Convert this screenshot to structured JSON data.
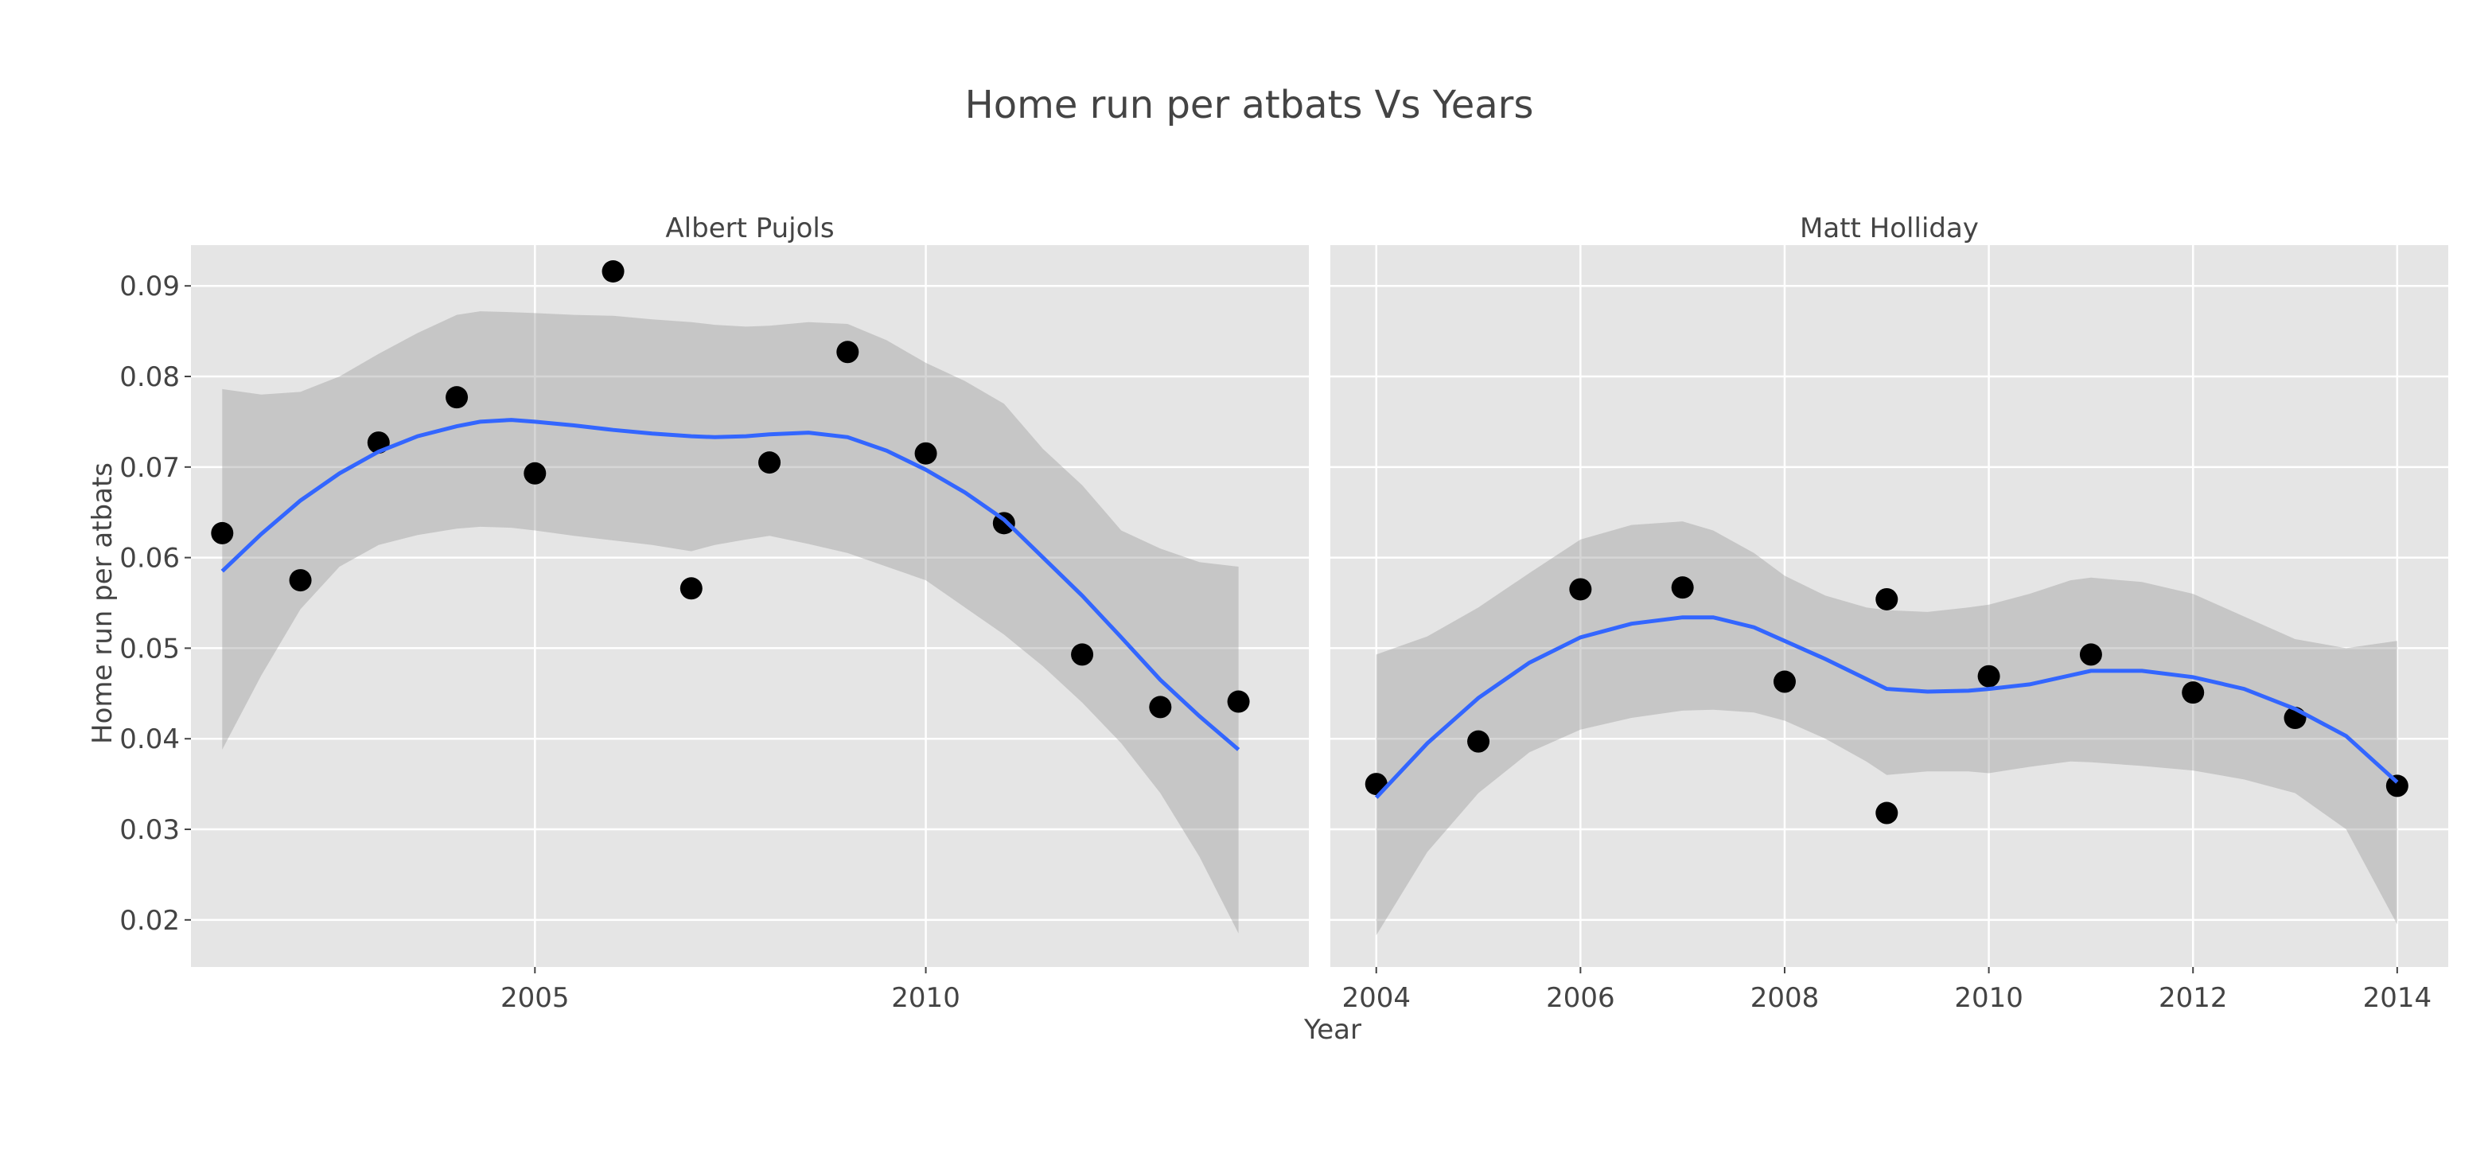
{
  "chart_data": {
    "type": "scatter",
    "title": "Home run per atbats Vs Years",
    "xlabel": "Year",
    "ylabel": "Home run per atbats",
    "y_ticks": [
      "0.02",
      "0.03",
      "0.04",
      "0.05",
      "0.06",
      "0.07",
      "0.08",
      "0.09"
    ],
    "ylim": [
      0.0148,
      0.0945
    ],
    "panels": [
      {
        "name": "Albert Pujols",
        "xlim": [
          2000.6,
          2014.9
        ],
        "x_ticks": [
          "2005",
          "2010"
        ],
        "points": [
          {
            "x": 2001,
            "y": 0.0627
          },
          {
            "x": 2002,
            "y": 0.0575
          },
          {
            "x": 2003,
            "y": 0.0727
          },
          {
            "x": 2004,
            "y": 0.0777
          },
          {
            "x": 2005,
            "y": 0.0693
          },
          {
            "x": 2006,
            "y": 0.0916
          },
          {
            "x": 2007,
            "y": 0.0566
          },
          {
            "x": 2008,
            "y": 0.0705
          },
          {
            "x": 2009,
            "y": 0.0827
          },
          {
            "x": 2010,
            "y": 0.0715
          },
          {
            "x": 2011,
            "y": 0.0638
          },
          {
            "x": 2012,
            "y": 0.0493
          },
          {
            "x": 2013,
            "y": 0.0435
          },
          {
            "x": 2014,
            "y": 0.0441
          }
        ],
        "smooth": {
          "x": [
            2001,
            2001.5,
            2002,
            2002.5,
            2003,
            2003.5,
            2004,
            2004.3,
            2004.7,
            2005,
            2005.5,
            2006,
            2006.5,
            2007,
            2007.3,
            2007.7,
            2008,
            2008.5,
            2009,
            2009.5,
            2010,
            2010.5,
            2011,
            2011.5,
            2012,
            2012.5,
            2013,
            2013.5,
            2014
          ],
          "y": [
            0.0585,
            0.0626,
            0.0663,
            0.0693,
            0.0717,
            0.0734,
            0.0745,
            0.075,
            0.0752,
            0.075,
            0.0746,
            0.0741,
            0.0737,
            0.0734,
            0.0733,
            0.0734,
            0.0736,
            0.0738,
            0.0733,
            0.0718,
            0.0697,
            0.0672,
            0.0642,
            0.06,
            0.0558,
            0.0512,
            0.0465,
            0.0425,
            0.0388
          ],
          "lower": [
            0.0388,
            0.047,
            0.0543,
            0.059,
            0.0614,
            0.0625,
            0.0632,
            0.0634,
            0.0633,
            0.063,
            0.0624,
            0.0619,
            0.0614,
            0.0607,
            0.0614,
            0.062,
            0.0624,
            0.0615,
            0.0605,
            0.059,
            0.0575,
            0.0545,
            0.0515,
            0.048,
            0.044,
            0.0395,
            0.034,
            0.027,
            0.0185
          ],
          "upper": [
            0.0786,
            0.078,
            0.0783,
            0.08,
            0.0825,
            0.0848,
            0.0868,
            0.0872,
            0.0871,
            0.087,
            0.0868,
            0.0867,
            0.0863,
            0.086,
            0.0857,
            0.0855,
            0.0856,
            0.086,
            0.0858,
            0.084,
            0.0815,
            0.0795,
            0.077,
            0.072,
            0.068,
            0.063,
            0.061,
            0.0595,
            0.059
          ]
        }
      },
      {
        "name": "Matt Holliday",
        "xlim": [
          2003.55,
          2014.5
        ],
        "x_ticks": [
          "2004",
          "2006",
          "2008",
          "2010",
          "2012",
          "2014"
        ],
        "points": [
          {
            "x": 2004,
            "y": 0.035
          },
          {
            "x": 2005,
            "y": 0.0397
          },
          {
            "x": 2006,
            "y": 0.0565
          },
          {
            "x": 2007,
            "y": 0.0567
          },
          {
            "x": 2008,
            "y": 0.0463
          },
          {
            "x": 2009,
            "y": 0.0554
          },
          {
            "x": 2009,
            "y": 0.0318
          },
          {
            "x": 2010,
            "y": 0.0469
          },
          {
            "x": 2011,
            "y": 0.0493
          },
          {
            "x": 2012,
            "y": 0.0451
          },
          {
            "x": 2013,
            "y": 0.0423
          },
          {
            "x": 2014,
            "y": 0.0348
          }
        ],
        "smooth": {
          "x": [
            2004,
            2004.5,
            2005,
            2005.5,
            2006,
            2006.5,
            2007,
            2007.3,
            2007.7,
            2008,
            2008.4,
            2008.8,
            2009,
            2009.4,
            2009.8,
            2010,
            2010.4,
            2010.8,
            2011,
            2011.5,
            2012,
            2012.5,
            2013,
            2013.5,
            2014
          ],
          "y": [
            0.0335,
            0.0395,
            0.0445,
            0.0484,
            0.0512,
            0.0527,
            0.0534,
            0.0534,
            0.0523,
            0.0508,
            0.0488,
            0.0466,
            0.0455,
            0.0452,
            0.0453,
            0.0455,
            0.046,
            0.047,
            0.0475,
            0.0475,
            0.0468,
            0.0455,
            0.0433,
            0.0403,
            0.0352
          ],
          "lower": [
            0.0183,
            0.0275,
            0.034,
            0.0385,
            0.041,
            0.0423,
            0.0431,
            0.0432,
            0.0429,
            0.042,
            0.04,
            0.0375,
            0.036,
            0.0364,
            0.0364,
            0.0362,
            0.0369,
            0.0375,
            0.0374,
            0.037,
            0.0365,
            0.0355,
            0.034,
            0.03,
            0.0195
          ],
          "upper": [
            0.0493,
            0.0513,
            0.0545,
            0.0583,
            0.062,
            0.0636,
            0.064,
            0.063,
            0.0605,
            0.058,
            0.0558,
            0.0545,
            0.0542,
            0.054,
            0.0545,
            0.0548,
            0.056,
            0.0575,
            0.0578,
            0.0573,
            0.056,
            0.0535,
            0.051,
            0.05,
            0.0508
          ]
        }
      }
    ]
  }
}
